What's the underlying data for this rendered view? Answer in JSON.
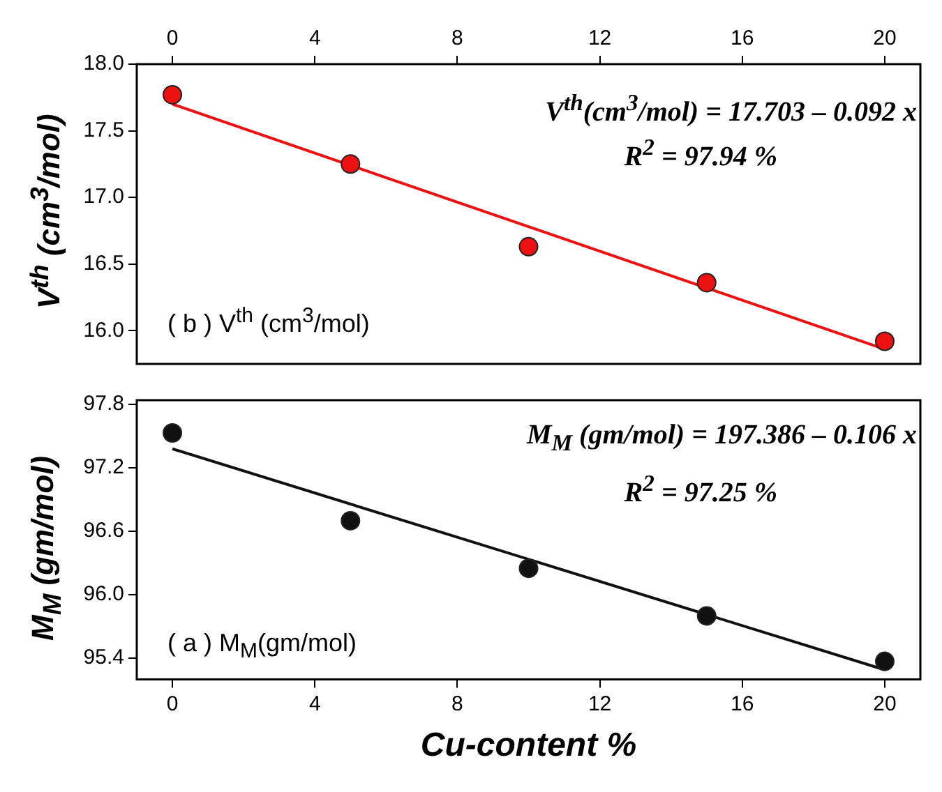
{
  "chart_data": [
    {
      "type": "scatter",
      "ylabel": "V$^{th}$ (cm$^{3}$/mol)",
      "annotations": [
        "V$^{th}$(cm$^{3}$/mol) = 17.703 – 0.092 x",
        "R$^{2}$ = 97.94 %",
        "( b ) V$^{th}$ (cm$^{3}$/mol)"
      ],
      "xlim": [
        -1,
        21
      ],
      "xticks": [
        0,
        4,
        8,
        12,
        16,
        20
      ],
      "ylim": [
        15.75,
        18.0
      ],
      "yticks": [
        {
          "value": 16,
          "label": "16.0"
        },
        16.5,
        {
          "value": 17,
          "label": "17.0"
        },
        17.5,
        {
          "value": 18,
          "label": "18.0"
        }
      ],
      "grid": false,
      "legend": false,
      "series": [
        {
          "color": "#ee1111",
          "marker": "circle",
          "x": [
            0,
            5,
            10,
            15,
            20
          ],
          "values": [
            17.77,
            17.25,
            16.63,
            16.36,
            15.92
          ]
        },
        {
          "type": "line",
          "color": "#ee1111",
          "marker": "none",
          "line_style": "solid",
          "x": [
            0,
            20
          ],
          "values": [
            17.7,
            15.86
          ]
        }
      ]
    },
    {
      "type": "scatter",
      "xlabel": "Cu-content %",
      "ylabel": "M$_{M}$ (gm/mol)",
      "annotations": [
        "M$_{M}$ (gm/mol) = 197.386 – 0.106 x",
        "R$^{2}$ = 97.25 %",
        "( a ) M$_{M}$(gm/mol)"
      ],
      "xlim": [
        -1,
        21
      ],
      "xticks": [
        0,
        4,
        8,
        12,
        16,
        20
      ],
      "ylim": [
        95.2,
        97.84
      ],
      "yticks": [
        95.4,
        {
          "value": 96,
          "label": "96.0"
        },
        96.6,
        97.2,
        97.8
      ],
      "grid": false,
      "legend": false,
      "series": [
        {
          "color": "#111111",
          "marker": "circle",
          "x": [
            0,
            5,
            10,
            15,
            20
          ],
          "values": [
            97.53,
            96.7,
            96.25,
            95.8,
            95.37
          ]
        },
        {
          "type": "line",
          "color": "#111111",
          "marker": "none",
          "line_style": "solid",
          "x": [
            0,
            20
          ],
          "values": [
            97.38,
            95.29
          ]
        }
      ]
    }
  ]
}
